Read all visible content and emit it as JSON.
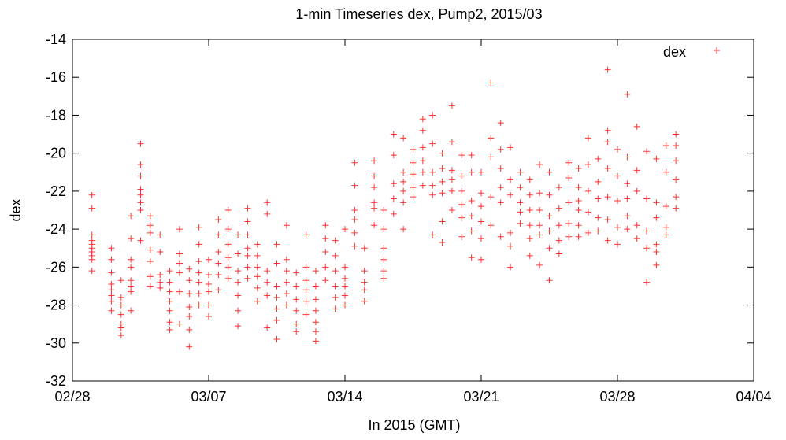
{
  "chart_data": {
    "type": "scatter",
    "title": "1-min Timeseries dex, Pump2, 2015/03",
    "xlabel": "In 2015 (GMT)",
    "ylabel": "dex",
    "x_range": [
      "2015-02-28",
      "2015-04-04"
    ],
    "x_ticks": [
      "02/28",
      "03/07",
      "03/14",
      "03/21",
      "03/28",
      "04/04"
    ],
    "y_range": [
      -32,
      -14
    ],
    "y_ticks": [
      "-14",
      "-16",
      "-18",
      "-20",
      "-22",
      "-24",
      "-26",
      "-28",
      "-30",
      "-32"
    ],
    "grid": false,
    "legend_position": "top-right",
    "marker": "plus",
    "series": [
      {
        "name": "dex",
        "color": "#ff3333",
        "points": [
          {
            "x": "2015-03-01",
            "values": [
              -22.2,
              -22.9,
              -24.3,
              -24.6,
              -24.8,
              -25.0,
              -25.2,
              -25.4,
              -25.6,
              -26.2
            ]
          },
          {
            "x": "2015-03-02",
            "values": [
              -25.0,
              -25.6,
              -26.3,
              -26.9,
              -27.2,
              -27.5,
              -27.8,
              -28.3
            ]
          },
          {
            "x": "2015-03-02T12",
            "values": [
              -26.7,
              -27.6,
              -28.0,
              -28.5,
              -29.0,
              -29.2,
              -29.6
            ]
          },
          {
            "x": "2015-03-03",
            "values": [
              -23.3,
              -24.5,
              -25.6,
              -26.0,
              -26.7,
              -27.0,
              -27.3,
              -28.3
            ]
          },
          {
            "x": "2015-03-03T12",
            "values": [
              -19.5,
              -20.6,
              -21.2,
              -21.9,
              -22.2,
              -22.6,
              -23.0,
              -24.6
            ]
          },
          {
            "x": "2015-03-04",
            "values": [
              -23.3,
              -23.8,
              -24.2,
              -25.1,
              -25.7,
              -26.5,
              -27.0
            ]
          },
          {
            "x": "2015-03-04T12",
            "values": [
              -24.3,
              -25.2,
              -26.4,
              -26.8,
              -27.1
            ]
          },
          {
            "x": "2015-03-05",
            "values": [
              -26.2,
              -26.8,
              -27.3,
              -27.8,
              -28.3,
              -28.9,
              -29.3
            ]
          },
          {
            "x": "2015-03-05T12",
            "values": [
              -24.0,
              -25.3,
              -25.8,
              -26.3,
              -27.3,
              -29.0
            ]
          },
          {
            "x": "2015-03-06",
            "values": [
              -26.1,
              -26.7,
              -27.4,
              -28.1,
              -28.6,
              -29.3,
              -30.2
            ]
          },
          {
            "x": "2015-03-06T12",
            "values": [
              -23.9,
              -24.8,
              -25.7,
              -26.3,
              -26.8,
              -27.4,
              -28.0
            ]
          },
          {
            "x": "2015-03-07",
            "values": [
              -25.6,
              -26.4,
              -26.9,
              -27.3,
              -28.0,
              -28.6
            ]
          },
          {
            "x": "2015-03-07T12",
            "values": [
              -23.5,
              -24.3,
              -25.2,
              -25.8,
              -26.4,
              -27.2
            ]
          },
          {
            "x": "2015-03-08",
            "values": [
              -23.0,
              -24.0,
              -24.8,
              -25.5,
              -26.0,
              -26.6
            ]
          },
          {
            "x": "2015-03-08T12",
            "values": [
              -24.3,
              -25.3,
              -26.2,
              -26.8,
              -27.5,
              -28.3,
              -29.1
            ]
          },
          {
            "x": "2015-03-09",
            "values": [
              -22.9,
              -23.6,
              -24.3,
              -25.0,
              -25.4,
              -26.0,
              -26.6
            ]
          },
          {
            "x": "2015-03-09T12",
            "values": [
              -24.8,
              -25.4,
              -26.0,
              -26.5,
              -27.1,
              -27.8
            ]
          },
          {
            "x": "2015-03-10",
            "values": [
              -22.6,
              -23.2,
              -26.2,
              -26.8,
              -27.5,
              -29.2
            ]
          },
          {
            "x": "2015-03-10T12",
            "values": [
              -24.8,
              -25.8,
              -27.0,
              -27.6,
              -28.2,
              -28.8,
              -29.8
            ]
          },
          {
            "x": "2015-03-11",
            "values": [
              -23.8,
              -25.6,
              -26.2,
              -26.8,
              -27.4,
              -28.0
            ]
          },
          {
            "x": "2015-03-11T12",
            "values": [
              -26.3,
              -27.0,
              -27.7,
              -28.3,
              -29.0,
              -29.4
            ]
          },
          {
            "x": "2015-03-12",
            "values": [
              -24.3,
              -26.0,
              -26.7,
              -27.2,
              -27.8,
              -28.5
            ]
          },
          {
            "x": "2015-03-12T12",
            "values": [
              -26.2,
              -27.0,
              -27.7,
              -28.3,
              -28.9,
              -29.4,
              -29.9
            ]
          },
          {
            "x": "2015-03-13",
            "values": [
              -23.8,
              -24.5,
              -25.2,
              -26.0,
              -26.7
            ]
          },
          {
            "x": "2015-03-13T12",
            "values": [
              -24.6,
              -25.4,
              -26.2,
              -27.0,
              -27.6,
              -28.2
            ]
          },
          {
            "x": "2015-03-14",
            "values": [
              -24.0,
              -26.0,
              -26.6,
              -27.0,
              -27.5,
              -28.0
            ]
          },
          {
            "x": "2015-03-14T12",
            "values": [
              -20.5,
              -21.7,
              -23.0,
              -23.5,
              -24.2,
              -24.9
            ]
          },
          {
            "x": "2015-03-15",
            "values": [
              -25.0,
              -26.2,
              -26.8,
              -27.2,
              -27.8
            ]
          },
          {
            "x": "2015-03-15T12",
            "values": [
              -20.4,
              -21.2,
              -21.8,
              -22.6,
              -22.9,
              -23.8
            ]
          },
          {
            "x": "2015-03-16",
            "values": [
              -23.0,
              -24.0,
              -25.0,
              -25.6,
              -26.2,
              -26.6
            ]
          },
          {
            "x": "2015-03-16T12",
            "values": [
              -19.0,
              -20.1,
              -21.6,
              -22.4,
              -23.2
            ]
          },
          {
            "x": "2015-03-17",
            "values": [
              -19.2,
              -21.0,
              -21.5,
              -22.0,
              -22.6,
              -24.0
            ]
          },
          {
            "x": "2015-03-17T12",
            "values": [
              -19.8,
              -20.5,
              -21.1,
              -21.8,
              -22.3
            ]
          },
          {
            "x": "2015-03-18",
            "values": [
              -18.2,
              -18.8,
              -19.7,
              -20.4,
              -21.0,
              -21.7
            ]
          },
          {
            "x": "2015-03-18T12",
            "values": [
              -18.0,
              -19.5,
              -21.0,
              -21.7,
              -22.2,
              -24.3
            ]
          },
          {
            "x": "2015-03-19",
            "values": [
              -20.0,
              -20.8,
              -21.5,
              -22.1,
              -23.6,
              -24.7
            ]
          },
          {
            "x": "2015-03-19T12",
            "values": [
              -17.5,
              -19.4,
              -20.9,
              -21.4,
              -22.0,
              -23.0
            ]
          },
          {
            "x": "2015-03-20",
            "values": [
              -20.1,
              -21.2,
              -22.0,
              -22.7,
              -23.4,
              -24.4
            ]
          },
          {
            "x": "2015-03-20T12",
            "values": [
              -20.1,
              -21.0,
              -22.5,
              -23.3,
              -24.1,
              -25.5
            ]
          },
          {
            "x": "2015-03-21",
            "values": [
              -21.0,
              -22.1,
              -22.8,
              -23.6,
              -24.5,
              -25.6
            ]
          },
          {
            "x": "2015-03-21T12",
            "values": [
              -16.3,
              -19.2,
              -20.2,
              -22.3,
              -23.8
            ]
          },
          {
            "x": "2015-03-22",
            "values": [
              -18.4,
              -19.8,
              -20.8,
              -21.8,
              -22.6,
              -24.4
            ]
          },
          {
            "x": "2015-03-22T12",
            "values": [
              -19.7,
              -21.4,
              -22.2,
              -24.2,
              -24.9,
              -26.0
            ]
          },
          {
            "x": "2015-03-23",
            "values": [
              -21.0,
              -21.8,
              -22.6,
              -23.1,
              -23.7
            ]
          },
          {
            "x": "2015-03-23T12",
            "values": [
              -21.4,
              -22.2,
              -23.0,
              -23.8,
              -24.5,
              -25.4
            ]
          },
          {
            "x": "2015-03-24",
            "values": [
              -20.6,
              -22.1,
              -23.0,
              -23.8,
              -24.3,
              -25.9
            ]
          },
          {
            "x": "2015-03-24T12",
            "values": [
              -21.0,
              -22.2,
              -23.3,
              -24.1,
              -25.0,
              -26.7
            ]
          },
          {
            "x": "2015-03-25",
            "values": [
              -21.8,
              -22.9,
              -23.8,
              -24.6,
              -25.3
            ]
          },
          {
            "x": "2015-03-25T12",
            "values": [
              -20.5,
              -21.3,
              -22.6,
              -23.7,
              -24.4
            ]
          },
          {
            "x": "2015-03-26",
            "values": [
              -20.8,
              -21.8,
              -22.5,
              -23.0,
              -23.8,
              -24.4
            ]
          },
          {
            "x": "2015-03-26T12",
            "values": [
              -19.2,
              -20.6,
              -22.0,
              -23.1,
              -24.2
            ]
          },
          {
            "x": "2015-03-27",
            "values": [
              -20.3,
              -21.5,
              -22.4,
              -23.4,
              -24.1
            ]
          },
          {
            "x": "2015-03-27T12",
            "values": [
              -15.6,
              -18.8,
              -19.4,
              -20.8,
              -22.3,
              -23.5,
              -24.6
            ]
          },
          {
            "x": "2015-03-28",
            "values": [
              -19.8,
              -21.2,
              -22.5,
              -23.9,
              -24.8
            ]
          },
          {
            "x": "2015-03-28T12",
            "values": [
              -16.9,
              -20.2,
              -21.6,
              -22.4,
              -23.3,
              -24.0
            ]
          },
          {
            "x": "2015-03-29",
            "values": [
              -18.6,
              -20.9,
              -22.0,
              -23.8,
              -24.5
            ]
          },
          {
            "x": "2015-03-29T12",
            "values": [
              -19.9,
              -22.4,
              -24.1,
              -25.0,
              -26.8
            ]
          },
          {
            "x": "2015-03-30",
            "values": [
              -20.3,
              -22.6,
              -23.4,
              -24.8,
              -25.2,
              -25.9
            ]
          },
          {
            "x": "2015-03-30T12",
            "values": [
              -19.6,
              -21.0,
              -22.8,
              -23.9,
              -24.3
            ]
          },
          {
            "x": "2015-03-31",
            "values": [
              -19.0,
              -19.6,
              -20.4,
              -21.4,
              -22.3,
              -22.9
            ]
          }
        ]
      }
    ]
  }
}
